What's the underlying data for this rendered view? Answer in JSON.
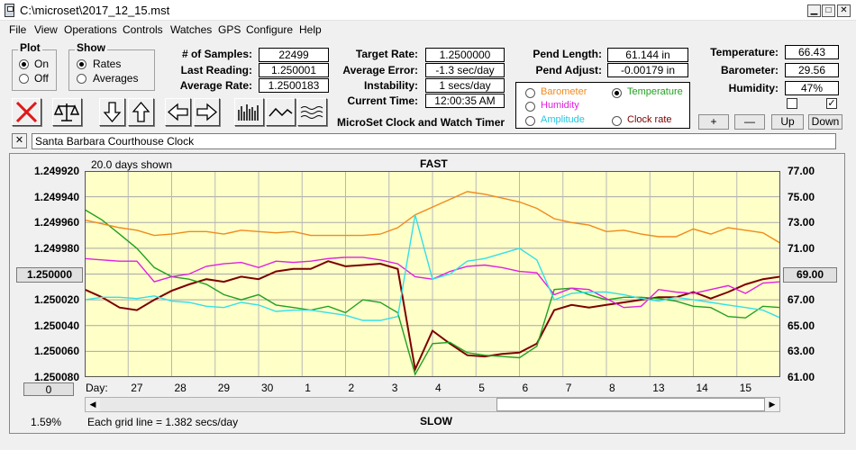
{
  "window": {
    "title": "C:\\microset\\2017_12_15.mst"
  },
  "menu": [
    "File",
    "View",
    "Operations",
    "Controls",
    "Watches",
    "GPS",
    "Configure",
    "Help"
  ],
  "plot_group": {
    "title": "Plot",
    "on_label": "On",
    "off_label": "Off",
    "selected": "On"
  },
  "show_group": {
    "title": "Show",
    "rates_label": "Rates",
    "averages_label": "Averages",
    "selected": "Rates"
  },
  "stats": {
    "samples_label": "# of Samples:",
    "samples": "22499",
    "last_reading_label": "Last Reading:",
    "last_reading": "1.250001",
    "avg_rate_label": "Average Rate:",
    "avg_rate": "1.2500183"
  },
  "targets": {
    "target_rate_label": "Target Rate:",
    "target_rate": "1.2500000",
    "avg_error_label": "Average Error:",
    "avg_error": "-1.3 sec/day",
    "instability_label": "Instability:",
    "instability": "1 secs/day",
    "current_time_label": "Current Time:",
    "current_time": "12:00:35 AM"
  },
  "pend": {
    "length_label": "Pend Length:",
    "length": "61.144 in",
    "adjust_label": "Pend Adjust:",
    "adjust": "-0.00179 in"
  },
  "environment": {
    "temperature_label": "Temperature:",
    "temperature": "66.43",
    "barometer_label": "Barometer:",
    "barometer": "29.56",
    "humidity_label": "Humidity:",
    "humidity": "47%"
  },
  "app_caption": "MicroSet Clock and Watch Timer",
  "parameters": {
    "barometer": "Barometer",
    "temperature": "Temperature",
    "humidity": "Humidity",
    "amplitude": "Amplitude",
    "clock_rate": "Clock rate",
    "selected": "Temperature"
  },
  "adjust_buttons": {
    "plus": "+",
    "minus": "—",
    "up": "Up",
    "down": "Down"
  },
  "clock_name": "Santa Barbara Courthouse Clock",
  "chart_data": {
    "type": "line",
    "days_shown": "20.0 days shown",
    "top_label": "FAST",
    "bottom_label": "SLOW",
    "grid_note": "Each grid line = 1.382 secs/day",
    "left_percent": "1.59%",
    "left_ticks": [
      "1.249920",
      "1.249940",
      "1.249960",
      "1.249980",
      "1.250000",
      "1.250020",
      "1.250040",
      "1.250060",
      "1.250080"
    ],
    "right_ticks": [
      "77.00",
      "75.00",
      "73.00",
      "71.00",
      "69.00",
      "67.00",
      "65.00",
      "63.00",
      "61.00"
    ],
    "center_button": "1.250000",
    "right_button": "69.00",
    "bottom_left_button": "0",
    "day_label": "Day:",
    "day_ticks": [
      "27",
      "28",
      "29",
      "30",
      "1",
      "2",
      "3",
      "4",
      "5",
      "6",
      "7",
      "8",
      "13",
      "14",
      "15"
    ],
    "ylim_rate": [
      1.24992,
      1.25008
    ],
    "ylim_temp": [
      61,
      77
    ],
    "xlim": [
      0,
      20
    ],
    "grid": true,
    "colors": {
      "background": "#ffffc8",
      "clock_rate": "#7b0000",
      "temperature": "#22a022",
      "barometer": "#f08a1c",
      "humidity": "#e020e0",
      "amplitude": "#33e0e8"
    },
    "series": [
      {
        "key": "clock_rate",
        "x": [
          0,
          0.5,
          1,
          1.5,
          2,
          2.5,
          3,
          3.5,
          4,
          4.5,
          5,
          5.5,
          6,
          6.5,
          7,
          7.5,
          8,
          8.5,
          9,
          9.5,
          10,
          10.5,
          11,
          11.5,
          12,
          12.5,
          13,
          13.5,
          14,
          14.5,
          15,
          15.5,
          16,
          16.5,
          17,
          17.5,
          18,
          18.5,
          19,
          19.5,
          20
        ],
        "y": [
          1.250012,
          1.250018,
          1.250026,
          1.250028,
          1.25002,
          1.250013,
          1.250008,
          1.250004,
          1.250006,
          1.250002,
          1.250004,
          1.249998,
          1.249996,
          1.249996,
          1.24999,
          1.249994,
          1.249993,
          1.249992,
          1.249996,
          1.250074,
          1.250044,
          1.250054,
          1.250063,
          1.250064,
          1.250062,
          1.250061,
          1.250054,
          1.250028,
          1.250024,
          1.250026,
          1.250024,
          1.250022,
          1.25002,
          1.250018,
          1.250018,
          1.250014,
          1.250019,
          1.250014,
          1.250008,
          1.250004,
          1.250002
        ]
      },
      {
        "key": "temperature",
        "x": [
          0,
          0.5,
          1,
          1.5,
          2,
          2.5,
          3,
          3.5,
          4,
          4.5,
          5,
          5.5,
          6,
          6.5,
          7,
          7.5,
          8,
          8.5,
          9,
          9.5,
          10,
          10.5,
          11,
          11.5,
          12,
          12.5,
          13,
          13.5,
          14,
          14.5,
          15,
          15.5,
          16,
          16.5,
          17,
          17.5,
          18,
          18.5,
          19,
          19.5,
          20
        ],
        "y": [
          74.0,
          73.2,
          72.1,
          71.0,
          69.5,
          68.8,
          68.6,
          68.2,
          67.4,
          67.0,
          67.4,
          66.6,
          66.4,
          66.2,
          66.5,
          66.0,
          67.0,
          66.8,
          66.0,
          61.2,
          63.6,
          63.7,
          62.9,
          62.7,
          62.6,
          62.5,
          63.4,
          67.8,
          67.9,
          67.4,
          67.0,
          67.2,
          67.2,
          67.1,
          66.9,
          66.5,
          66.4,
          65.7,
          65.6,
          66.5,
          66.4
        ]
      },
      {
        "key": "barometer",
        "x": [
          0,
          0.5,
          1,
          1.5,
          2,
          2.5,
          3,
          3.5,
          4,
          4.5,
          5,
          5.5,
          6,
          6.5,
          7,
          7.5,
          8,
          8.5,
          9,
          9.5,
          10,
          10.5,
          11,
          11.5,
          12,
          12.5,
          13,
          13.5,
          14,
          14.5,
          15,
          15.5,
          16,
          16.5,
          17,
          17.5,
          18,
          18.5,
          19,
          19.5,
          20
        ],
        "y": [
          73.2,
          72.9,
          72.6,
          72.4,
          72.0,
          72.1,
          72.3,
          72.3,
          72.1,
          72.4,
          72.3,
          72.2,
          72.3,
          72.0,
          72.0,
          72.0,
          72.0,
          72.1,
          72.6,
          73.6,
          74.2,
          74.8,
          75.4,
          75.2,
          74.9,
          74.6,
          74.1,
          73.3,
          73.0,
          72.8,
          72.3,
          72.4,
          72.1,
          71.9,
          71.9,
          72.5,
          72.1,
          72.6,
          72.4,
          72.2,
          71.4
        ]
      },
      {
        "key": "humidity",
        "x": [
          0,
          0.5,
          1,
          1.5,
          2,
          2.5,
          3,
          3.5,
          4,
          4.5,
          5,
          5.5,
          6,
          6.5,
          7,
          7.5,
          8,
          8.5,
          9,
          9.5,
          10,
          10.5,
          11,
          11.5,
          12,
          12.5,
          13,
          13.5,
          14,
          14.5,
          15,
          15.5,
          16,
          16.5,
          17,
          17.5,
          18,
          18.5,
          19,
          19.5,
          20
        ],
        "y": [
          70.2,
          70.1,
          70.0,
          70.0,
          68.4,
          68.8,
          69.0,
          69.6,
          69.8,
          69.9,
          69.5,
          70.0,
          69.9,
          70.0,
          70.2,
          70.3,
          70.3,
          70.1,
          69.8,
          68.8,
          68.6,
          69.2,
          69.6,
          69.7,
          69.5,
          69.2,
          69.1,
          67.4,
          67.9,
          67.8,
          67.1,
          66.4,
          66.5,
          67.8,
          67.6,
          67.5,
          67.8,
          68.1,
          67.5,
          68.3,
          68.4
        ]
      },
      {
        "key": "amplitude",
        "x": [
          0,
          0.5,
          1,
          1.5,
          2,
          2.5,
          3,
          3.5,
          4,
          4.5,
          5,
          5.5,
          6,
          6.5,
          7,
          7.5,
          8,
          8.5,
          9,
          9.5,
          10,
          10.5,
          11,
          11.5,
          12,
          12.5,
          13,
          13.5,
          14,
          14.5,
          15,
          15.5,
          16,
          16.5,
          17,
          17.5,
          18,
          18.5,
          19,
          19.5,
          20
        ],
        "y": [
          67.0,
          67.2,
          67.2,
          67.1,
          67.3,
          66.9,
          66.8,
          66.5,
          66.4,
          66.8,
          66.6,
          66.1,
          66.2,
          66.2,
          66.0,
          65.8,
          65.4,
          65.4,
          65.7,
          73.6,
          68.6,
          69.0,
          70.0,
          70.2,
          70.6,
          71.0,
          70.1,
          67.0,
          67.5,
          67.6,
          67.6,
          67.4,
          67.1,
          66.9,
          67.2,
          67.0,
          66.8,
          66.6,
          66.4,
          66.2,
          65.6
        ]
      }
    ]
  }
}
